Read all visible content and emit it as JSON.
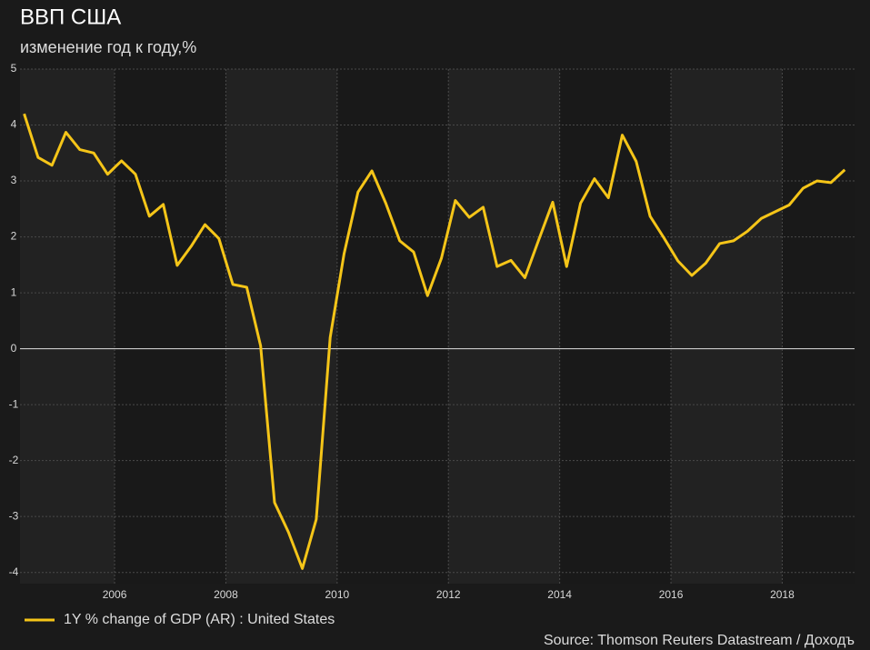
{
  "chart_data": {
    "type": "line",
    "title": "ВВП США",
    "subtitle": "изменение год к году,%",
    "source": "Source: Thomson Reuters Datastream / Доходъ",
    "x": [
      2004.375,
      2004.625,
      2004.875,
      2005.125,
      2005.375,
      2005.625,
      2005.875,
      2006.125,
      2006.375,
      2006.625,
      2006.875,
      2007.125,
      2007.375,
      2007.625,
      2007.875,
      2008.125,
      2008.375,
      2008.625,
      2008.875,
      2009.125,
      2009.375,
      2009.625,
      2009.875,
      2010.125,
      2010.375,
      2010.625,
      2010.875,
      2011.125,
      2011.375,
      2011.625,
      2011.875,
      2012.125,
      2012.375,
      2012.625,
      2012.875,
      2013.125,
      2013.375,
      2013.625,
      2013.875,
      2014.125,
      2014.375,
      2014.625,
      2014.875,
      2015.125,
      2015.375,
      2015.625,
      2015.875,
      2016.125,
      2016.375,
      2016.625,
      2016.875,
      2017.125,
      2017.375,
      2017.625,
      2017.875,
      2018.125,
      2018.375,
      2018.625,
      2018.875,
      2019.125
    ],
    "series": [
      {
        "name": "1Y % change of GDP (AR) : United States",
        "color": "#f5c518",
        "values": [
          4.2,
          3.42,
          3.28,
          3.87,
          3.56,
          3.5,
          3.12,
          3.36,
          3.12,
          2.37,
          2.58,
          1.49,
          1.83,
          2.22,
          1.97,
          1.15,
          1.1,
          0.05,
          -2.75,
          -3.28,
          -3.93,
          -3.05,
          0.2,
          1.7,
          2.8,
          3.18,
          2.6,
          1.93,
          1.73,
          0.95,
          1.62,
          2.65,
          2.35,
          2.53,
          1.47,
          1.58,
          1.27,
          1.95,
          2.62,
          1.47,
          2.6,
          3.04,
          2.7,
          3.82,
          3.35,
          2.37,
          1.98,
          1.57,
          1.31,
          1.53,
          1.88,
          1.93,
          2.1,
          2.33,
          2.45,
          2.57,
          2.87,
          3.0,
          2.97,
          3.2
        ]
      }
    ],
    "xlim": [
      2004.3,
      2019.3
    ],
    "xticks": [
      2006,
      2008,
      2010,
      2012,
      2014,
      2016,
      2018
    ],
    "ylim": [
      -4.2,
      5
    ],
    "yticks": [
      -4,
      -3,
      -2,
      -1,
      0,
      1,
      2,
      3,
      4,
      5
    ],
    "grid": true
  }
}
